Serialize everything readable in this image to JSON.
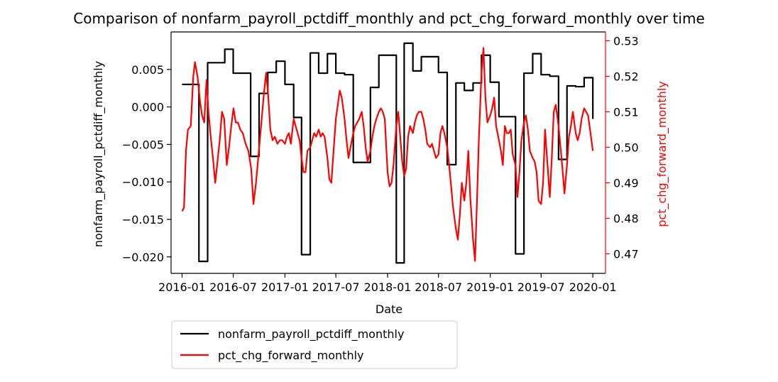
{
  "chart_data": {
    "type": "line",
    "title": "Comparison of nonfarm_payroll_pctdiff_monthly and pct_chg_forward_monthly over time",
    "xlabel": "Date",
    "ylabel_left": "nonfarm_payroll_pctdiff_monthly",
    "ylabel_right": "pct_chg_forward_monthly",
    "x_ticks": [
      "2016-01",
      "2016-07",
      "2017-01",
      "2017-07",
      "2018-01",
      "2018-07",
      "2019-01",
      "2019-07",
      "2020-01"
    ],
    "y_left_ticks": [
      "−0.020",
      "−0.015",
      "−0.010",
      "−0.005",
      "0.000",
      "0.005"
    ],
    "y_right_ticks": [
      "0.47",
      "0.48",
      "0.49",
      "0.50",
      "0.51",
      "0.52",
      "0.53"
    ],
    "xlim": [
      "2015-11-23",
      "2020-02-15"
    ],
    "ylim_left": [
      -0.0222,
      0.01
    ],
    "ylim_right": [
      0.4645,
      0.5325
    ],
    "legend_placement": "below",
    "grid": false,
    "series": [
      {
        "name": "nonfarm_payroll_pctdiff_monthly",
        "axis": "left",
        "color": "#000000",
        "step": true,
        "points": [
          [
            "2016-01-01",
            0.003
          ],
          [
            "2016-02-01",
            0.003
          ],
          [
            "2016-03-01",
            -0.0206
          ],
          [
            "2016-04-01",
            0.0059
          ],
          [
            "2016-05-01",
            0.0059
          ],
          [
            "2016-06-01",
            0.0077
          ],
          [
            "2016-07-01",
            0.0045
          ],
          [
            "2016-08-01",
            0.0045
          ],
          [
            "2016-09-01",
            -0.0066
          ],
          [
            "2016-10-01",
            0.0018
          ],
          [
            "2016-11-01",
            0.0046
          ],
          [
            "2016-12-01",
            0.0061
          ],
          [
            "2017-01-01",
            0.003
          ],
          [
            "2017-02-01",
            -0.0014
          ],
          [
            "2017-03-01",
            -0.0197
          ],
          [
            "2017-04-01",
            0.0072
          ],
          [
            "2017-05-01",
            0.0045
          ],
          [
            "2017-06-01",
            0.0071
          ],
          [
            "2017-07-01",
            0.0045
          ],
          [
            "2017-08-01",
            0.0043
          ],
          [
            "2017-09-01",
            -0.0074
          ],
          [
            "2017-10-01",
            -0.0074
          ],
          [
            "2017-11-01",
            0.0026
          ],
          [
            "2017-12-01",
            0.0069
          ],
          [
            "2018-01-01",
            0.0069
          ],
          [
            "2018-02-01",
            -0.0208
          ],
          [
            "2018-03-01",
            0.0085
          ],
          [
            "2018-04-01",
            0.0048
          ],
          [
            "2018-05-01",
            0.0067
          ],
          [
            "2018-06-01",
            0.0067
          ],
          [
            "2018-07-01",
            0.0046
          ],
          [
            "2018-08-01",
            -0.0077
          ],
          [
            "2018-09-01",
            0.0032
          ],
          [
            "2018-10-01",
            0.0022
          ],
          [
            "2018-11-01",
            0.0032
          ],
          [
            "2018-12-01",
            0.0069
          ],
          [
            "2019-01-01",
            0.0033
          ],
          [
            "2019-02-01",
            -0.0013
          ],
          [
            "2019-03-01",
            -0.0013
          ],
          [
            "2019-04-01",
            -0.0196
          ],
          [
            "2019-05-01",
            0.0045
          ],
          [
            "2019-06-01",
            0.0071
          ],
          [
            "2019-07-01",
            0.0043
          ],
          [
            "2019-08-01",
            0.0041
          ],
          [
            "2019-09-01",
            -0.007
          ],
          [
            "2019-10-01",
            0.0028
          ],
          [
            "2019-11-01",
            0.0027
          ],
          [
            "2019-12-01",
            0.0039
          ],
          [
            "2020-01-01",
            -0.0016
          ]
        ]
      },
      {
        "name": "pct_chg_forward_monthly",
        "axis": "right",
        "color": "#ff0000",
        "step": false,
        "points": [
          [
            "2016-01-01",
            0.482
          ],
          [
            "2016-01-08",
            0.483
          ],
          [
            "2016-01-15",
            0.499
          ],
          [
            "2016-01-22",
            0.505
          ],
          [
            "2016-02-01",
            0.506
          ],
          [
            "2016-02-10",
            0.52
          ],
          [
            "2016-02-16",
            0.524
          ],
          [
            "2016-02-25",
            0.52
          ],
          [
            "2016-03-05",
            0.513
          ],
          [
            "2016-03-12",
            0.509
          ],
          [
            "2016-03-20",
            0.507
          ],
          [
            "2016-03-28",
            0.519
          ],
          [
            "2016-04-04",
            0.51
          ],
          [
            "2016-04-12",
            0.503
          ],
          [
            "2016-04-20",
            0.497
          ],
          [
            "2016-04-28",
            0.49
          ],
          [
            "2016-05-06",
            0.496
          ],
          [
            "2016-05-14",
            0.502
          ],
          [
            "2016-05-22",
            0.51
          ],
          [
            "2016-05-30",
            0.508
          ],
          [
            "2016-06-08",
            0.495
          ],
          [
            "2016-06-16",
            0.5
          ],
          [
            "2016-06-24",
            0.506
          ],
          [
            "2016-07-02",
            0.511
          ],
          [
            "2016-07-10",
            0.507
          ],
          [
            "2016-07-18",
            0.507
          ],
          [
            "2016-07-26",
            0.505
          ],
          [
            "2016-08-04",
            0.504
          ],
          [
            "2016-08-14",
            0.501
          ],
          [
            "2016-08-24",
            0.499
          ],
          [
            "2016-09-03",
            0.494
          ],
          [
            "2016-09-11",
            0.484
          ],
          [
            "2016-09-20",
            0.49
          ],
          [
            "2016-09-28",
            0.497
          ],
          [
            "2016-10-08",
            0.506
          ],
          [
            "2016-10-18",
            0.515
          ],
          [
            "2016-10-26",
            0.521
          ],
          [
            "2016-11-02",
            0.515
          ],
          [
            "2016-11-10",
            0.505
          ],
          [
            "2016-11-18",
            0.502
          ],
          [
            "2016-11-26",
            0.503
          ],
          [
            "2016-12-05",
            0.501
          ],
          [
            "2016-12-14",
            0.502
          ],
          [
            "2016-12-22",
            0.502
          ],
          [
            "2017-01-01",
            0.501
          ],
          [
            "2017-01-08",
            0.503
          ],
          [
            "2017-01-15",
            0.504
          ],
          [
            "2017-01-22",
            0.501
          ],
          [
            "2017-02-01",
            0.508
          ],
          [
            "2017-02-08",
            0.506
          ],
          [
            "2017-02-15",
            0.504
          ],
          [
            "2017-02-22",
            0.502
          ],
          [
            "2017-03-01",
            0.497
          ],
          [
            "2017-03-08",
            0.493
          ],
          [
            "2017-03-15",
            0.493
          ],
          [
            "2017-03-22",
            0.499
          ],
          [
            "2017-04-01",
            0.5
          ],
          [
            "2017-04-08",
            0.502
          ],
          [
            "2017-04-15",
            0.504
          ],
          [
            "2017-04-22",
            0.503
          ],
          [
            "2017-05-01",
            0.505
          ],
          [
            "2017-05-08",
            0.503
          ],
          [
            "2017-05-15",
            0.504
          ],
          [
            "2017-05-22",
            0.503
          ],
          [
            "2017-06-01",
            0.497
          ],
          [
            "2017-06-08",
            0.491
          ],
          [
            "2017-06-15",
            0.49
          ],
          [
            "2017-06-22",
            0.498
          ],
          [
            "2017-07-01",
            0.508
          ],
          [
            "2017-07-08",
            0.512
          ],
          [
            "2017-07-15",
            0.516
          ],
          [
            "2017-07-22",
            0.514
          ],
          [
            "2017-08-01",
            0.508
          ],
          [
            "2017-08-08",
            0.502
          ],
          [
            "2017-08-15",
            0.497
          ],
          [
            "2017-08-22",
            0.5
          ],
          [
            "2017-09-01",
            0.504
          ],
          [
            "2017-09-08",
            0.506
          ],
          [
            "2017-09-15",
            0.507
          ],
          [
            "2017-09-22",
            0.508
          ],
          [
            "2017-10-01",
            0.51
          ],
          [
            "2017-10-08",
            0.506
          ],
          [
            "2017-10-15",
            0.5
          ],
          [
            "2017-10-22",
            0.496
          ],
          [
            "2017-11-01",
            0.499
          ],
          [
            "2017-11-08",
            0.503
          ],
          [
            "2017-11-15",
            0.506
          ],
          [
            "2017-11-22",
            0.508
          ],
          [
            "2017-12-01",
            0.51
          ],
          [
            "2017-12-08",
            0.511
          ],
          [
            "2017-12-15",
            0.51
          ],
          [
            "2017-12-22",
            0.508
          ],
          [
            "2018-01-01",
            0.493
          ],
          [
            "2018-01-08",
            0.489
          ],
          [
            "2018-01-15",
            0.49
          ],
          [
            "2018-01-22",
            0.495
          ],
          [
            "2018-02-01",
            0.506
          ],
          [
            "2018-02-08",
            0.51
          ],
          [
            "2018-02-15",
            0.503
          ],
          [
            "2018-02-22",
            0.496
          ],
          [
            "2018-03-01",
            0.492
          ],
          [
            "2018-03-08",
            0.494
          ],
          [
            "2018-03-15",
            0.503
          ],
          [
            "2018-03-22",
            0.506
          ],
          [
            "2018-04-01",
            0.504
          ],
          [
            "2018-04-08",
            0.507
          ],
          [
            "2018-04-15",
            0.509
          ],
          [
            "2018-04-22",
            0.51
          ],
          [
            "2018-05-01",
            0.51
          ],
          [
            "2018-05-08",
            0.508
          ],
          [
            "2018-05-15",
            0.505
          ],
          [
            "2018-05-22",
            0.501
          ],
          [
            "2018-06-01",
            0.5
          ],
          [
            "2018-06-08",
            0.501
          ],
          [
            "2018-06-15",
            0.499
          ],
          [
            "2018-06-22",
            0.497
          ],
          [
            "2018-07-01",
            0.498
          ],
          [
            "2018-07-08",
            0.504
          ],
          [
            "2018-07-15",
            0.506
          ],
          [
            "2018-07-22",
            0.504
          ],
          [
            "2018-08-01",
            0.5
          ],
          [
            "2018-08-08",
            0.495
          ],
          [
            "2018-08-15",
            0.489
          ],
          [
            "2018-08-22",
            0.483
          ],
          [
            "2018-09-01",
            0.477
          ],
          [
            "2018-09-08",
            0.474
          ],
          [
            "2018-09-15",
            0.481
          ],
          [
            "2018-09-22",
            0.49
          ],
          [
            "2018-10-01",
            0.485
          ],
          [
            "2018-10-08",
            0.49
          ],
          [
            "2018-10-15",
            0.499
          ],
          [
            "2018-10-22",
            0.486
          ],
          [
            "2018-11-01",
            0.474
          ],
          [
            "2018-11-08",
            0.468
          ],
          [
            "2018-11-15",
            0.485
          ],
          [
            "2018-11-22",
            0.503
          ],
          [
            "2018-12-01",
            0.521
          ],
          [
            "2018-12-08",
            0.528
          ],
          [
            "2018-12-15",
            0.514
          ],
          [
            "2018-12-22",
            0.507
          ],
          [
            "2019-01-01",
            0.509
          ],
          [
            "2019-01-08",
            0.511
          ],
          [
            "2019-01-15",
            0.514
          ],
          [
            "2019-01-22",
            0.506
          ],
          [
            "2019-02-01",
            0.502
          ],
          [
            "2019-02-08",
            0.499
          ],
          [
            "2019-02-15",
            0.495
          ],
          [
            "2019-02-22",
            0.506
          ],
          [
            "2019-03-01",
            0.504
          ],
          [
            "2019-03-08",
            0.504
          ],
          [
            "2019-03-15",
            0.505
          ],
          [
            "2019-03-22",
            0.498
          ],
          [
            "2019-04-01",
            0.495
          ],
          [
            "2019-04-08",
            0.486
          ],
          [
            "2019-04-15",
            0.493
          ],
          [
            "2019-04-22",
            0.502
          ],
          [
            "2019-05-01",
            0.507
          ],
          [
            "2019-05-08",
            0.509
          ],
          [
            "2019-05-15",
            0.505
          ],
          [
            "2019-05-22",
            0.499
          ],
          [
            "2019-06-01",
            0.497
          ],
          [
            "2019-06-08",
            0.496
          ],
          [
            "2019-06-15",
            0.493
          ],
          [
            "2019-06-22",
            0.485
          ],
          [
            "2019-07-01",
            0.484
          ],
          [
            "2019-07-08",
            0.49
          ],
          [
            "2019-07-15",
            0.505
          ],
          [
            "2019-07-22",
            0.497
          ],
          [
            "2019-08-01",
            0.486
          ],
          [
            "2019-08-08",
            0.497
          ],
          [
            "2019-08-15",
            0.51
          ],
          [
            "2019-08-22",
            0.512
          ],
          [
            "2019-09-01",
            0.506
          ],
          [
            "2019-09-08",
            0.5
          ],
          [
            "2019-09-15",
            0.494
          ],
          [
            "2019-09-22",
            0.487
          ],
          [
            "2019-10-01",
            0.495
          ],
          [
            "2019-10-08",
            0.503
          ],
          [
            "2019-10-15",
            0.506
          ],
          [
            "2019-10-22",
            0.51
          ],
          [
            "2019-11-01",
            0.504
          ],
          [
            "2019-11-08",
            0.502
          ],
          [
            "2019-11-15",
            0.504
          ],
          [
            "2019-11-22",
            0.508
          ],
          [
            "2019-12-01",
            0.511
          ],
          [
            "2019-12-08",
            0.51
          ],
          [
            "2019-12-15",
            0.509
          ],
          [
            "2019-12-22",
            0.505
          ],
          [
            "2020-01-01",
            0.499
          ]
        ]
      }
    ]
  }
}
